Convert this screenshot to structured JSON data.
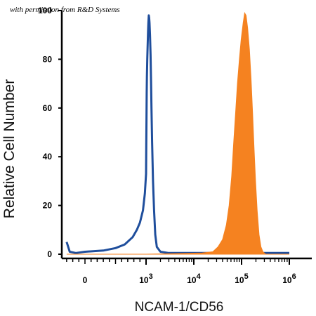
{
  "watermark": "with permission from R&D Systems",
  "chart_data": {
    "type": "area",
    "title": "",
    "xlabel": "NCAM-1/CD56",
    "ylabel": "Relative Cell Number",
    "xscale": "biexponential",
    "xticks": [
      {
        "label": "0",
        "value": 0
      },
      {
        "label": "10",
        "sup": "3",
        "value": 1000
      },
      {
        "label": "10",
        "sup": "4",
        "value": 10000
      },
      {
        "label": "10",
        "sup": "5",
        "value": 100000
      },
      {
        "label": "10",
        "sup": "6",
        "value": 1000000
      }
    ],
    "yticks": [
      0,
      20,
      40,
      60,
      80,
      100
    ],
    "ylim": [
      0,
      100
    ],
    "grid": false,
    "series": [
      {
        "style": "outline",
        "color": "#1f4e9c",
        "points": [
          [
            -300,
            5
          ],
          [
            -250,
            1
          ],
          [
            -150,
            0.5
          ],
          [
            0,
            1
          ],
          [
            300,
            1.5
          ],
          [
            500,
            2.5
          ],
          [
            650,
            4
          ],
          [
            780,
            7
          ],
          [
            850,
            10
          ],
          [
            900,
            13
          ],
          [
            950,
            18
          ],
          [
            980,
            25
          ],
          [
            1000,
            33
          ],
          [
            1010,
            45
          ],
          [
            1020,
            55
          ],
          [
            1030,
            66
          ],
          [
            1040,
            73
          ],
          [
            1060,
            80
          ],
          [
            1080,
            86
          ],
          [
            1100,
            91
          ],
          [
            1120,
            95
          ],
          [
            1140,
            98
          ],
          [
            1160,
            97
          ],
          [
            1180,
            95
          ],
          [
            1210,
            90
          ],
          [
            1240,
            82
          ],
          [
            1270,
            71
          ],
          [
            1300,
            60
          ],
          [
            1340,
            46
          ],
          [
            1400,
            30
          ],
          [
            1470,
            18
          ],
          [
            1560,
            8
          ],
          [
            1680,
            3
          ],
          [
            2000,
            1
          ],
          [
            3000,
            0.5
          ],
          [
            1000000,
            0.5
          ]
        ]
      },
      {
        "style": "filled",
        "color": "#f58220",
        "points": [
          [
            -300,
            0
          ],
          [
            1000,
            0
          ],
          [
            15000,
            0.5
          ],
          [
            25000,
            1
          ],
          [
            32000,
            3
          ],
          [
            40000,
            6
          ],
          [
            48000,
            12
          ],
          [
            55000,
            20
          ],
          [
            62000,
            32
          ],
          [
            68000,
            45
          ],
          [
            75000,
            58
          ],
          [
            82000,
            70
          ],
          [
            90000,
            80
          ],
          [
            98000,
            88
          ],
          [
            108000,
            95
          ],
          [
            116000,
            99
          ],
          [
            124000,
            98
          ],
          [
            134000,
            93
          ],
          [
            146000,
            84
          ],
          [
            158000,
            72
          ],
          [
            170000,
            58
          ],
          [
            182000,
            44
          ],
          [
            196000,
            30
          ],
          [
            212000,
            18
          ],
          [
            232000,
            8
          ],
          [
            255000,
            3
          ],
          [
            280000,
            1
          ],
          [
            320000,
            0
          ],
          [
            1000000,
            0
          ]
        ]
      }
    ]
  }
}
